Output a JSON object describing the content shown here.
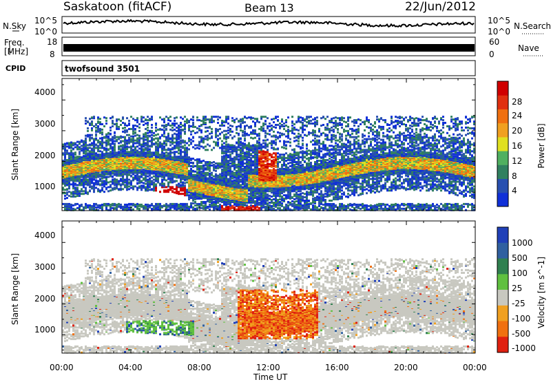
{
  "header": {
    "station": "Saskatoon (fitACF)",
    "beam": "Beam 13",
    "date": "22/Jun/2012"
  },
  "strip_nsky": {
    "left_label": "N.Sky",
    "right_label": "N.Search",
    "tick_top": "10^5",
    "tick_bottom": "10^0"
  },
  "strip_freq": {
    "left_label_1": "Freq.",
    "left_label_2": "[MHz]",
    "right_label": "Nave",
    "ticks_left": [
      "18",
      "8"
    ],
    "ticks_right": [
      "60",
      "0"
    ]
  },
  "cpid": {
    "label": "CPID",
    "value": "twofsound 3501"
  },
  "colors": {
    "power_scale": [
      "#1030d8",
      "#2850b0",
      "#308060",
      "#50b060",
      "#e0e020",
      "#f0a020",
      "#f07010",
      "#e03010",
      "#d00000"
    ],
    "velocity_scale": [
      "#2040b8",
      "#3060a0",
      "#308050",
      "#60c040",
      "#c8c8c0",
      "#f0a020",
      "#f07010",
      "#e02010"
    ]
  },
  "chart_data": [
    {
      "type": "heatmap",
      "name": "power",
      "xlabel": "",
      "ylabel": "Slant Range [km]",
      "yticks": [
        "1000",
        "2000",
        "3000",
        "4000"
      ],
      "ylim": [
        200,
        4500
      ],
      "colorbar_label": "Power [dB]",
      "colorbar_ticks": [
        "4",
        "8",
        "12",
        "16",
        "20",
        "24",
        "28"
      ],
      "colorbar_range": [
        0,
        30
      ]
    },
    {
      "type": "heatmap",
      "name": "velocity",
      "xlabel": "Time UT",
      "xticks": [
        "00:00",
        "04:00",
        "08:00",
        "12:00",
        "16:00",
        "20:00",
        "00:00"
      ],
      "ylabel": "Slant Range [km]",
      "yticks": [
        "1000",
        "2000",
        "3000",
        "4000"
      ],
      "ylim": [
        200,
        4500
      ],
      "colorbar_label": "Velocity [m s^-1]",
      "colorbar_ticks": [
        "1000",
        "500",
        "100",
        "25",
        "-25",
        "-100",
        "-500",
        "-1000"
      ]
    }
  ]
}
